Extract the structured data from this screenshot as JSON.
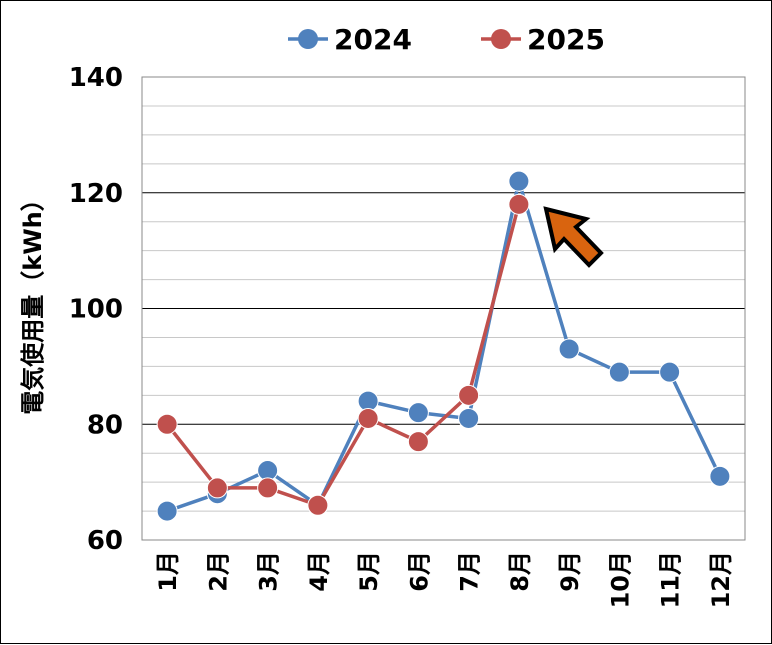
{
  "chart_data": {
    "type": "line",
    "title": "",
    "xlabel": "",
    "ylabel": "電気使用量（kWh）",
    "categories": [
      "1月",
      "2月",
      "3月",
      "4月",
      "5月",
      "6月",
      "7月",
      "8月",
      "9月",
      "10月",
      "11月",
      "12月"
    ],
    "ylim": [
      60,
      140
    ],
    "yticks": [
      "60",
      "80",
      "100",
      "120",
      "140"
    ],
    "grid": true,
    "legend": "top",
    "series": [
      {
        "name": "2024",
        "color": "#4f81bd",
        "values": [
          65,
          68,
          72,
          66,
          84,
          82,
          81,
          122,
          93,
          89,
          89,
          71
        ]
      },
      {
        "name": "2025",
        "color": "#c0504d",
        "values": [
          80,
          69,
          69,
          66,
          81,
          77,
          85,
          118,
          null,
          null,
          null,
          null
        ]
      }
    ],
    "annotation": {
      "type": "arrow",
      "color": "#d9640f",
      "points_to": "8月"
    }
  }
}
